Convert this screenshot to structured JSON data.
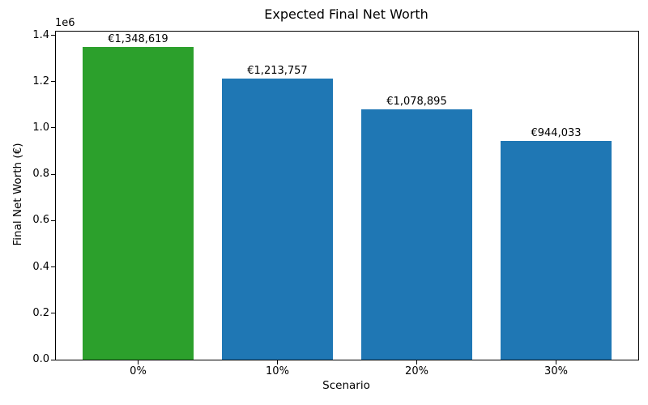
{
  "chart_data": {
    "type": "bar",
    "title": "Expected Final Net Worth",
    "xlabel": "Scenario",
    "ylabel": "Final Net Worth (€)",
    "y_offset_text": "1e6",
    "categories": [
      "0%",
      "10%",
      "20%",
      "30%"
    ],
    "values": [
      1348619,
      1213757,
      1078895,
      944033
    ],
    "bar_labels": [
      "€1,348,619",
      "€1,213,757",
      "€1,078,895",
      "€944,033"
    ],
    "bar_colors": [
      "#2ca02c",
      "#1f77b4",
      "#1f77b4",
      "#1f77b4"
    ],
    "ytick_values": [
      0,
      200000,
      400000,
      600000,
      800000,
      1000000,
      1200000,
      1400000
    ],
    "ytick_labels": [
      "0.0",
      "0.2",
      "0.4",
      "0.6",
      "0.8",
      "1.0",
      "1.2",
      "1.4"
    ],
    "ylim": [
      0,
      1416050
    ],
    "grid": false,
    "legend": "none",
    "background_color": "#ffffff",
    "spine_color": "#000000"
  }
}
